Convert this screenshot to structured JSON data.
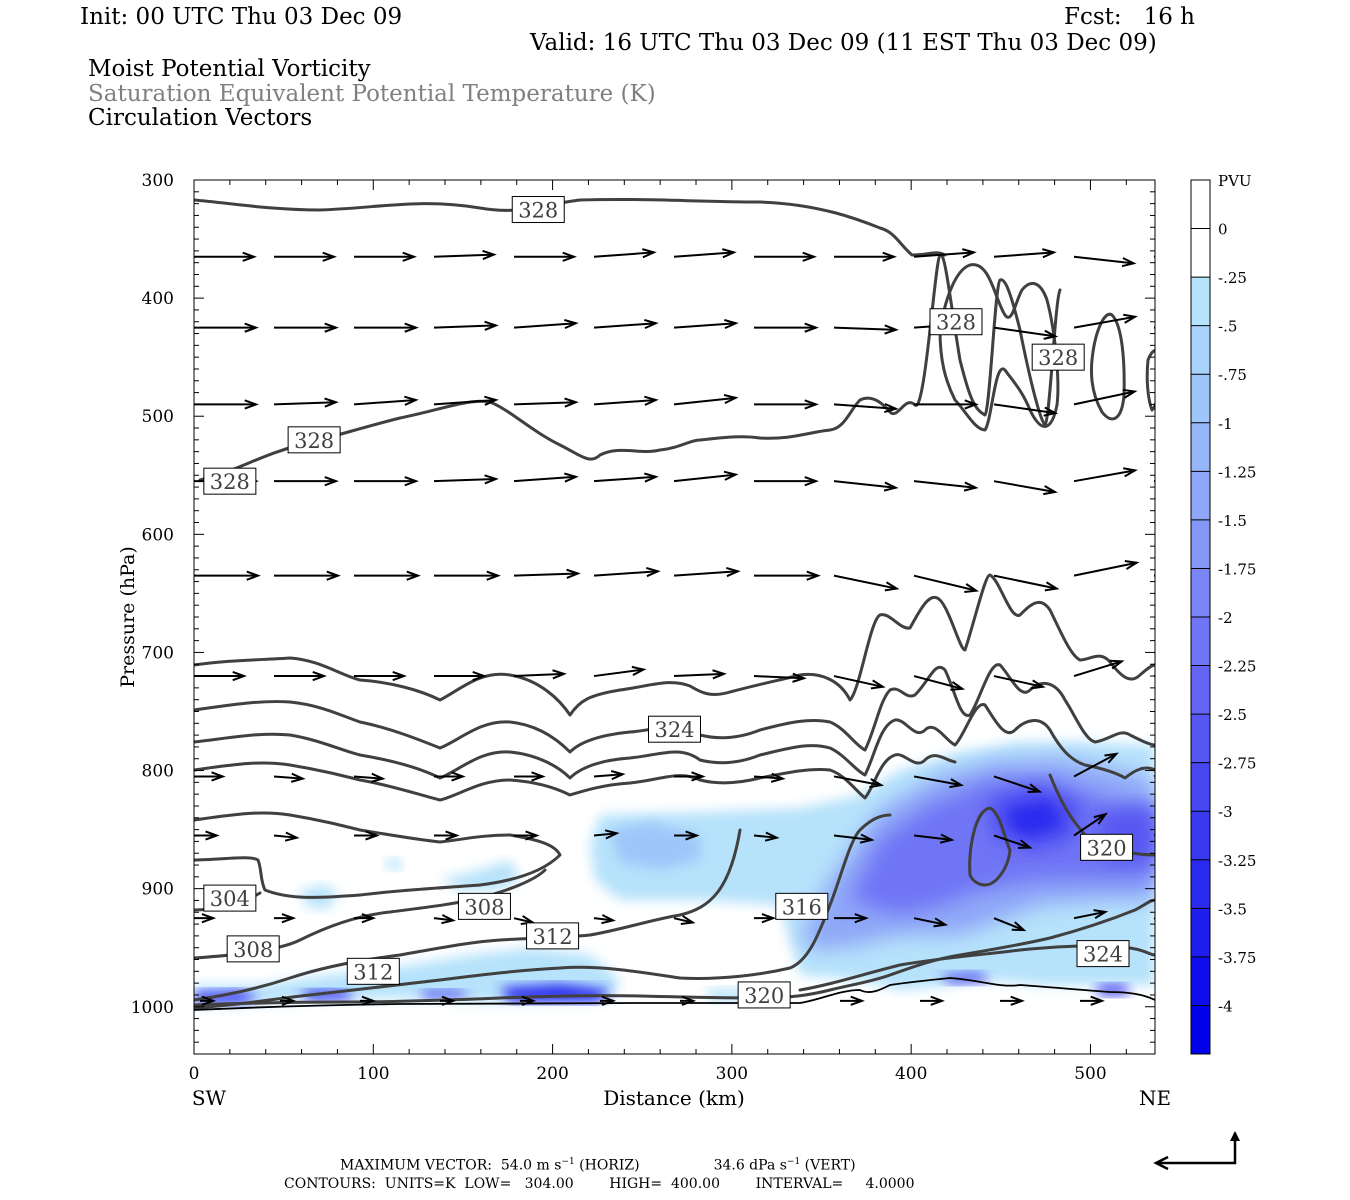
{
  "header": {
    "init": "Init: 00 UTC Thu 03 Dec 09",
    "fcst": "Fcst:   16 h",
    "valid": "Valid: 16 UTC Thu 03 Dec 09 (11 EST Thu 03 Dec 09)",
    "field1": "Moist Potential Vorticity",
    "field2": "Saturation Equivalent Potential Temperature (K)",
    "field3": "Circulation Vectors"
  },
  "footer": {
    "maxvec_prefix": "MAXIMUM VECTOR:  54.0 m s",
    "maxvec_horiz": " (HORIZ)",
    "maxvec_vert_val": "34.6 dPa s",
    "maxvec_vert": " (VERT)",
    "contours_line": "CONTOURS:  UNITS=K  LOW=   304.00        HIGH=  400.00        INTERVAL=     4.0000"
  },
  "chart_data": {
    "type": "cross-section",
    "xlabel": "Distance (km)",
    "ylabel": "Pressure (hPa)",
    "x_left_label": "SW",
    "x_right_label": "NE",
    "xlim": [
      0,
      536
    ],
    "ylim": [
      1040,
      300
    ],
    "x_ticks": [
      0,
      100,
      200,
      300,
      400,
      500
    ],
    "y_ticks": [
      300,
      400,
      500,
      600,
      700,
      800,
      900,
      1000
    ],
    "colorbar": {
      "units": "PVU",
      "levels": [
        "0",
        "-.25",
        "-.5",
        "-.75",
        "-1",
        "-1.25",
        "-1.5",
        "-1.75",
        "-2",
        "-2.25",
        "-2.5",
        "-2.75",
        "-3",
        "-3.25",
        "-3.5",
        "-3.75",
        "-4"
      ],
      "colors": [
        "#ffffff",
        "#ffffff",
        "#b6e2fb",
        "#a9d3fb",
        "#9fc6fa",
        "#97b6f9",
        "#8fa7f8",
        "#8597f7",
        "#7b86f6",
        "#7075f5",
        "#6364f3",
        "#5656f2",
        "#4747f1",
        "#3939f0",
        "#2b2bef",
        "#1e1eee",
        "#0d0dec",
        "#0000ea"
      ]
    },
    "contour_labels": [
      {
        "x": 192,
        "p": 325,
        "text": "328"
      },
      {
        "x": 67,
        "p": 520,
        "text": "328"
      },
      {
        "x": 20,
        "p": 555,
        "text": "328"
      },
      {
        "x": 425,
        "p": 420,
        "text": "328"
      },
      {
        "x": 482,
        "p": 450,
        "text": "328"
      },
      {
        "x": 268,
        "p": 765,
        "text": "324"
      },
      {
        "x": 20,
        "p": 908,
        "text": "304"
      },
      {
        "x": 33,
        "p": 951,
        "text": "308"
      },
      {
        "x": 162,
        "p": 915,
        "text": "308"
      },
      {
        "x": 200,
        "p": 940,
        "text": "312"
      },
      {
        "x": 100,
        "p": 970,
        "text": "312"
      },
      {
        "x": 339,
        "p": 915,
        "text": "316"
      },
      {
        "x": 318,
        "p": 990,
        "text": "320"
      },
      {
        "x": 509,
        "p": 865,
        "text": "320"
      },
      {
        "x": 507,
        "p": 955,
        "text": "324"
      }
    ]
  }
}
